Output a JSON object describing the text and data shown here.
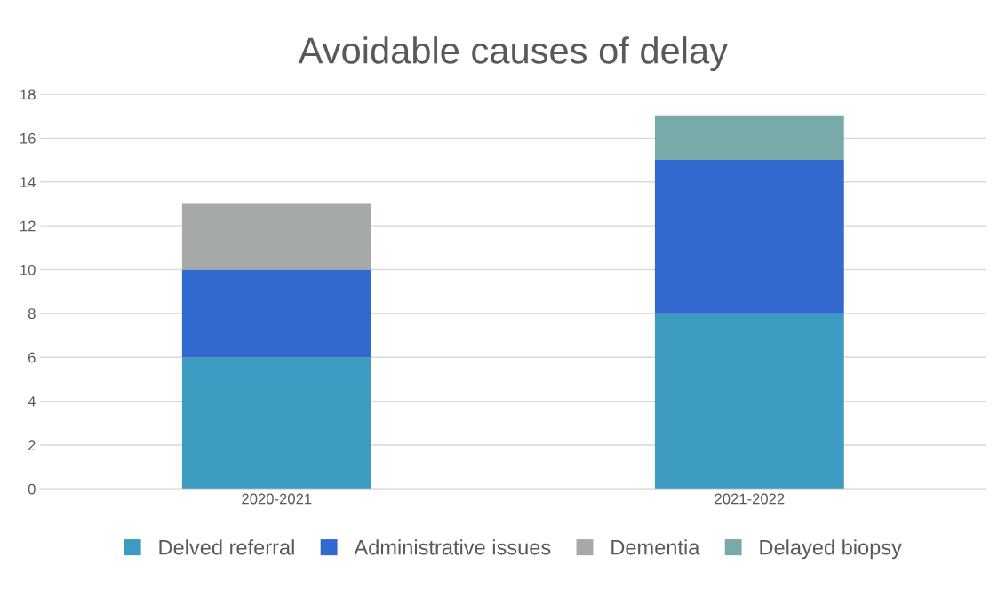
{
  "chart_data": {
    "type": "bar",
    "title": "Avoidable causes of delay",
    "stacked": true,
    "categories": [
      "2020-2021",
      "2021-2022"
    ],
    "series": [
      {
        "name": "Delved referral",
        "color": "#3d9bc1",
        "values": [
          6,
          8
        ]
      },
      {
        "name": "Administrative issues",
        "color": "#3269cf",
        "values": [
          4,
          7
        ]
      },
      {
        "name": "Dementia",
        "color": "#a5aaa9",
        "values": [
          3,
          null
        ]
      },
      {
        "name": "Delayed biopsy",
        "color": "#78aaa9",
        "values": [
          null,
          2
        ]
      }
    ],
    "ylim": [
      0,
      18
    ],
    "yticks": [
      0,
      2,
      4,
      6,
      8,
      10,
      12,
      14,
      16,
      18
    ],
    "grid": "y",
    "legend": "bottom"
  }
}
